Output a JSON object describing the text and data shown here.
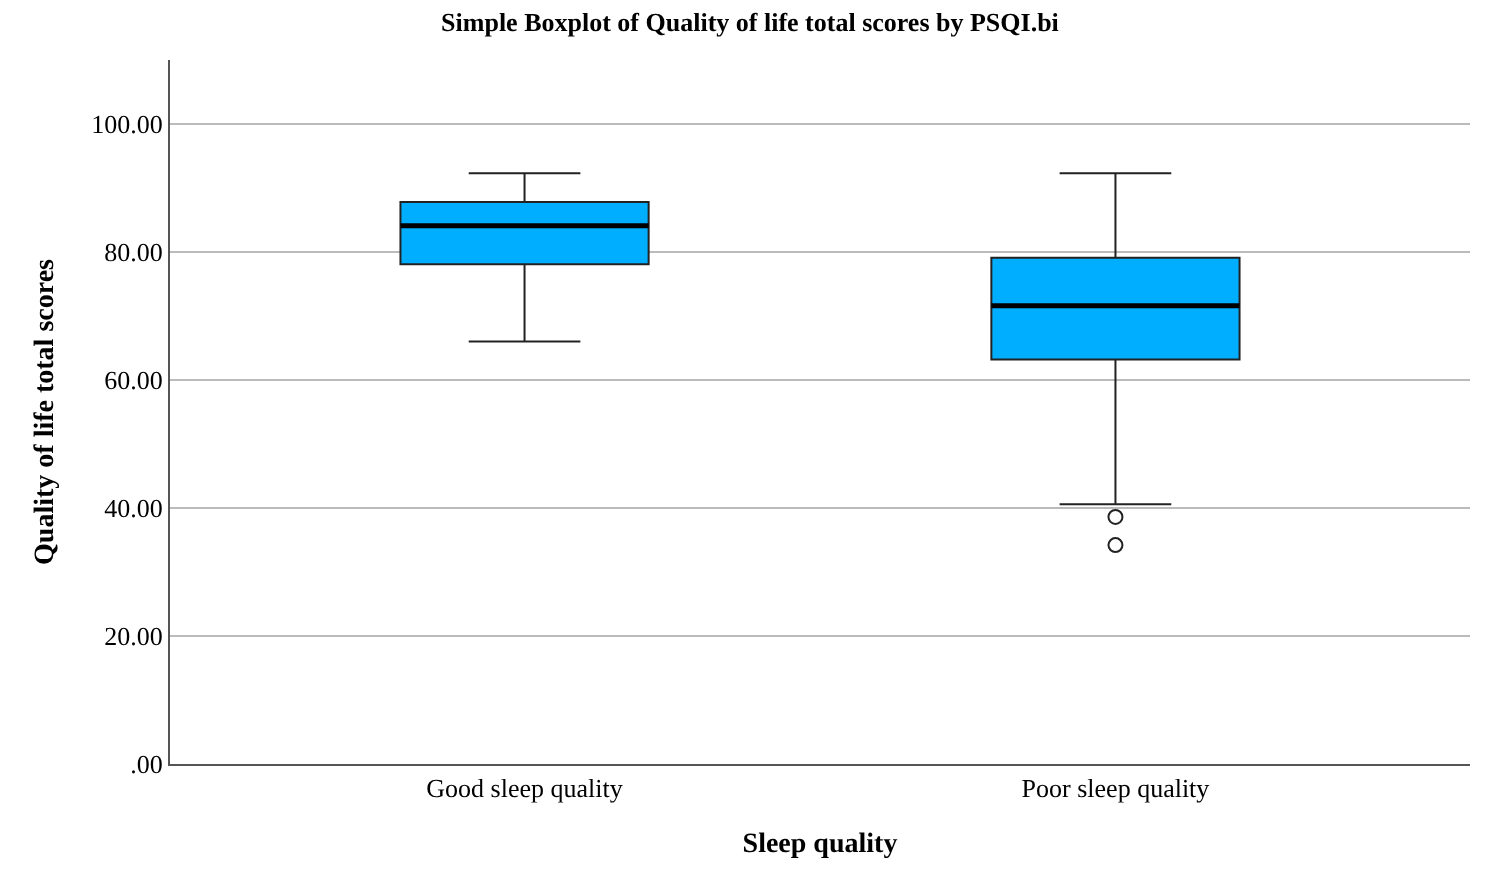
{
  "chart_data": {
    "type": "box",
    "title": "Simple Boxplot of Quality of life total scores by PSQI.bi",
    "xlabel": "Sleep quality",
    "ylabel": "Quality of life total scores",
    "categories": [
      "Good sleep quality",
      "Poor sleep quality"
    ],
    "color": "#00aeff",
    "boxes": [
      {
        "low": 66.0,
        "q1": 78.1,
        "median": 84.1,
        "q3": 87.8,
        "high": 92.3
      },
      {
        "low": 40.6,
        "q1": 63.2,
        "median": 71.6,
        "q3": 79.1,
        "high": 92.3,
        "outliers": [
          38.6,
          34.2
        ]
      }
    ],
    "ylim": [
      0,
      110
    ],
    "yticks": [
      {
        "value": 0,
        "label": ".00"
      },
      {
        "value": 20,
        "label": "20.00"
      },
      {
        "value": 40,
        "label": "40.00"
      },
      {
        "value": 60,
        "label": "60.00"
      },
      {
        "value": 80,
        "label": "80.00"
      },
      {
        "value": 100,
        "label": "100.00"
      }
    ],
    "grid": "y"
  }
}
